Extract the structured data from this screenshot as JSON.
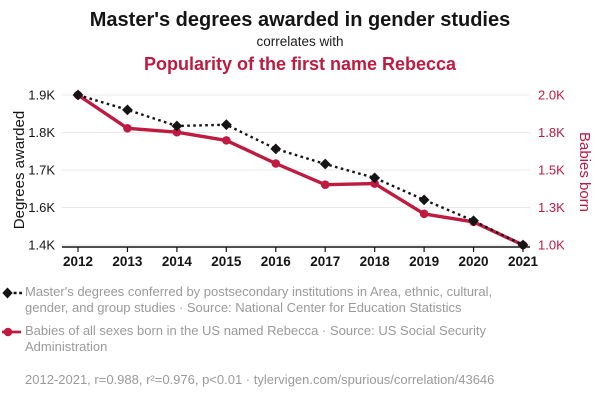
{
  "header": {
    "title": "Master's degrees awarded in gender studies",
    "connector": "correlates with",
    "subtitle": "Popularity of the first name Rebecca"
  },
  "colors": {
    "series_black": "#151515",
    "series_red": "#bf1b41",
    "legend_gray": "#9a9a9a",
    "gridline_gray": "#e8e8e8"
  },
  "chart_data": {
    "type": "line",
    "x": [
      2012,
      2013,
      2014,
      2015,
      2016,
      2017,
      2018,
      2019,
      2020,
      2021
    ],
    "series": [
      {
        "name": "Master's degrees conferred in Area, ethnic, cultural, gender, and group studies",
        "axis": "left",
        "color": "#151515",
        "style": "dashed",
        "marker": "diamond",
        "values": [
          1902,
          1856,
          1806,
          1810,
          1735,
          1688,
          1645,
          1577,
          1512,
          1437
        ]
      },
      {
        "name": "Babies of all sexes born in the US named Rebecca",
        "axis": "right",
        "color": "#bf1b41",
        "style": "solid",
        "marker": "circle",
        "values": [
          2005,
          1785,
          1759,
          1705,
          1552,
          1412,
          1419,
          1219,
          1166,
          1013
        ]
      }
    ],
    "left_axis": {
      "label": "Degrees awarded",
      "ticks": [
        "1.9K",
        "1.8K",
        "1.7K",
        "1.6K",
        "1.4K"
      ],
      "range": [
        1437,
        1902
      ]
    },
    "right_axis": {
      "label": "Babies born",
      "ticks": [
        "2.0K",
        "1.8K",
        "1.5K",
        "1.3K",
        "1.0K"
      ],
      "range": [
        1013,
        2005
      ]
    },
    "grid": true,
    "legend_position": "below"
  },
  "legend": {
    "entries": [
      {
        "marker": "black-diamond-dashed",
        "text": "Master's degrees conferred by postsecondary institutions in Area, ethnic, cultural, gender, and group studies · Source: National Center for Education Statistics"
      },
      {
        "marker": "red-circle-line",
        "text": "Babies of all sexes born in the US named Rebecca · Source: US Social Security Administration"
      }
    ]
  },
  "footer": {
    "stats": "2012-2021, r=0.988, r²=0.976, p<0.01 · tylervigen.com/spurious/correlation/43646"
  }
}
